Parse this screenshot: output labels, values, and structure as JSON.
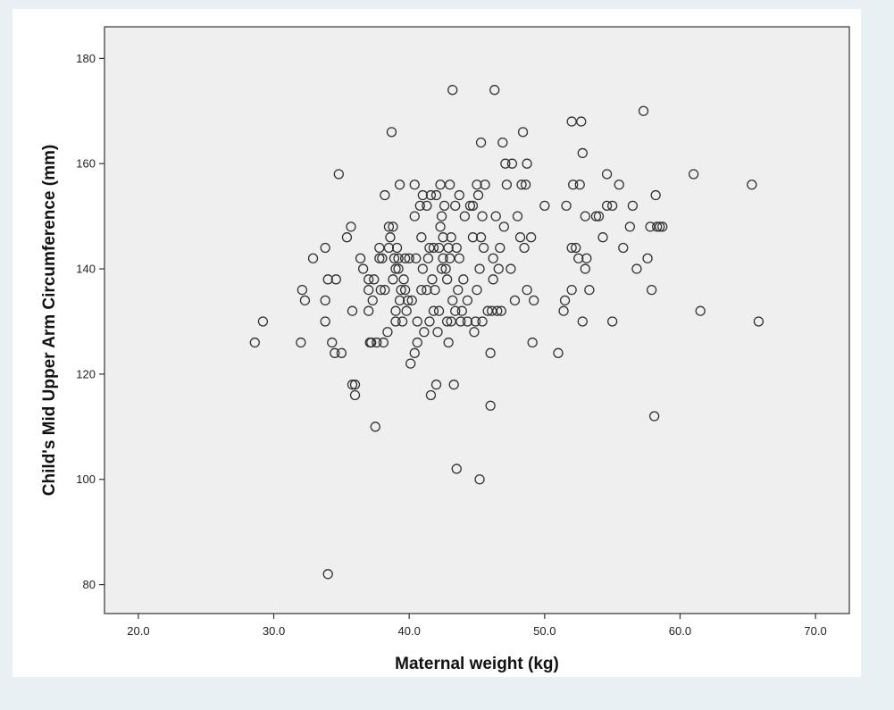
{
  "chart_data": {
    "type": "scatter",
    "title": "",
    "xlabel": "Maternal weight (kg)",
    "ylabel": "Child's Mid Upper Arm Circumference (mm)",
    "xlim": [
      17.5,
      72.5
    ],
    "ylim": [
      74.5,
      186
    ],
    "xticks": [
      20,
      30,
      40,
      50,
      60,
      70
    ],
    "xtick_labels": [
      "20.0",
      "30.0",
      "40.0",
      "50.0",
      "60.0",
      "70.0"
    ],
    "yticks": [
      80,
      100,
      120,
      140,
      160,
      180
    ],
    "ytick_labels": [
      "80",
      "100",
      "120",
      "140",
      "160",
      "180"
    ],
    "grid": false,
    "marker": "open-circle",
    "marker_color": "#333333",
    "plot_background": "#efefef",
    "points": [
      [
        28.6,
        126
      ],
      [
        29.2,
        130
      ],
      [
        32.0,
        126
      ],
      [
        32.1,
        136
      ],
      [
        32.3,
        134
      ],
      [
        32.9,
        142
      ],
      [
        33.8,
        144
      ],
      [
        33.8,
        134
      ],
      [
        33.8,
        130
      ],
      [
        34.0,
        138
      ],
      [
        34.0,
        82
      ],
      [
        34.3,
        126
      ],
      [
        34.5,
        124
      ],
      [
        34.6,
        138
      ],
      [
        34.8,
        158
      ],
      [
        35.0,
        124
      ],
      [
        35.4,
        146
      ],
      [
        35.7,
        148
      ],
      [
        35.8,
        132
      ],
      [
        35.8,
        118
      ],
      [
        36.0,
        118
      ],
      [
        36.0,
        116
      ],
      [
        36.4,
        142
      ],
      [
        36.6,
        140
      ],
      [
        37.0,
        138
      ],
      [
        37.0,
        136
      ],
      [
        37.0,
        132
      ],
      [
        37.1,
        126
      ],
      [
        37.2,
        126
      ],
      [
        37.3,
        134
      ],
      [
        37.4,
        138
      ],
      [
        37.5,
        110
      ],
      [
        37.6,
        126
      ],
      [
        37.8,
        144
      ],
      [
        37.8,
        142
      ],
      [
        37.9,
        136
      ],
      [
        38.0,
        142
      ],
      [
        38.1,
        126
      ],
      [
        38.2,
        136
      ],
      [
        38.2,
        154
      ],
      [
        38.4,
        128
      ],
      [
        38.5,
        144
      ],
      [
        38.5,
        148
      ],
      [
        38.6,
        146
      ],
      [
        38.7,
        166
      ],
      [
        38.8,
        148
      ],
      [
        38.8,
        138
      ],
      [
        38.9,
        142
      ],
      [
        39.0,
        132
      ],
      [
        39.0,
        140
      ],
      [
        39.0,
        130
      ],
      [
        39.1,
        144
      ],
      [
        39.2,
        142
      ],
      [
        39.2,
        140
      ],
      [
        39.3,
        156
      ],
      [
        39.3,
        134
      ],
      [
        39.4,
        136
      ],
      [
        39.5,
        130
      ],
      [
        39.6,
        138
      ],
      [
        39.7,
        142
      ],
      [
        39.7,
        136
      ],
      [
        39.8,
        132
      ],
      [
        39.9,
        134
      ],
      [
        40.0,
        142
      ],
      [
        40.1,
        122
      ],
      [
        40.2,
        134
      ],
      [
        40.4,
        150
      ],
      [
        40.4,
        156
      ],
      [
        40.4,
        124
      ],
      [
        40.5,
        142
      ],
      [
        40.6,
        126
      ],
      [
        40.6,
        130
      ],
      [
        40.8,
        152
      ],
      [
        40.9,
        136
      ],
      [
        40.9,
        146
      ],
      [
        41.0,
        154
      ],
      [
        41.0,
        140
      ],
      [
        41.1,
        128
      ],
      [
        41.3,
        152
      ],
      [
        41.3,
        136
      ],
      [
        41.4,
        142
      ],
      [
        41.5,
        144
      ],
      [
        41.5,
        130
      ],
      [
        41.6,
        154
      ],
      [
        41.6,
        116
      ],
      [
        41.7,
        138
      ],
      [
        41.8,
        132
      ],
      [
        41.8,
        144
      ],
      [
        41.9,
        136
      ],
      [
        42.0,
        154
      ],
      [
        42.0,
        118
      ],
      [
        42.1,
        128
      ],
      [
        42.2,
        132
      ],
      [
        42.2,
        144
      ],
      [
        42.3,
        148
      ],
      [
        42.3,
        156
      ],
      [
        42.4,
        150
      ],
      [
        42.4,
        140
      ],
      [
        42.5,
        146
      ],
      [
        42.5,
        142
      ],
      [
        42.6,
        152
      ],
      [
        42.7,
        140
      ],
      [
        42.8,
        138
      ],
      [
        42.8,
        130
      ],
      [
        42.9,
        126
      ],
      [
        42.9,
        144
      ],
      [
        43.0,
        156
      ],
      [
        43.0,
        142
      ],
      [
        43.1,
        130
      ],
      [
        43.1,
        146
      ],
      [
        43.2,
        174
      ],
      [
        43.2,
        134
      ],
      [
        43.3,
        118
      ],
      [
        43.4,
        152
      ],
      [
        43.4,
        132
      ],
      [
        43.5,
        144
      ],
      [
        43.5,
        102
      ],
      [
        43.6,
        136
      ],
      [
        43.7,
        142
      ],
      [
        43.7,
        154
      ],
      [
        43.8,
        130
      ],
      [
        43.9,
        132
      ],
      [
        44.0,
        138
      ],
      [
        44.1,
        150
      ],
      [
        44.3,
        130
      ],
      [
        44.3,
        134
      ],
      [
        44.5,
        152
      ],
      [
        44.7,
        152
      ],
      [
        44.7,
        146
      ],
      [
        44.8,
        128
      ],
      [
        44.9,
        130
      ],
      [
        45.0,
        136
      ],
      [
        45.0,
        156
      ],
      [
        45.1,
        154
      ],
      [
        45.2,
        100
      ],
      [
        45.2,
        140
      ],
      [
        45.3,
        164
      ],
      [
        45.3,
        146
      ],
      [
        45.4,
        130
      ],
      [
        45.4,
        150
      ],
      [
        45.5,
        144
      ],
      [
        45.6,
        156
      ],
      [
        45.8,
        132
      ],
      [
        46.0,
        114
      ],
      [
        46.0,
        124
      ],
      [
        46.1,
        132
      ],
      [
        46.2,
        138
      ],
      [
        46.2,
        142
      ],
      [
        46.3,
        174
      ],
      [
        46.4,
        150
      ],
      [
        46.5,
        132
      ],
      [
        46.6,
        140
      ],
      [
        46.7,
        144
      ],
      [
        46.8,
        132
      ],
      [
        46.9,
        164
      ],
      [
        47.0,
        148
      ],
      [
        47.1,
        160
      ],
      [
        47.2,
        156
      ],
      [
        47.5,
        140
      ],
      [
        47.6,
        160
      ],
      [
        47.8,
        134
      ],
      [
        48.0,
        150
      ],
      [
        48.2,
        146
      ],
      [
        48.3,
        156
      ],
      [
        48.4,
        166
      ],
      [
        48.5,
        144
      ],
      [
        48.6,
        156
      ],
      [
        48.7,
        136
      ],
      [
        48.7,
        160
      ],
      [
        49.0,
        146
      ],
      [
        49.1,
        126
      ],
      [
        49.2,
        134
      ],
      [
        50.0,
        152
      ],
      [
        51.0,
        124
      ],
      [
        51.4,
        132
      ],
      [
        51.5,
        134
      ],
      [
        51.6,
        152
      ],
      [
        52.0,
        168
      ],
      [
        52.0,
        144
      ],
      [
        52.0,
        136
      ],
      [
        52.1,
        156
      ],
      [
        52.3,
        144
      ],
      [
        52.5,
        142
      ],
      [
        52.6,
        156
      ],
      [
        52.7,
        168
      ],
      [
        52.8,
        162
      ],
      [
        52.8,
        130
      ],
      [
        53.0,
        150
      ],
      [
        53.0,
        140
      ],
      [
        53.1,
        142
      ],
      [
        53.3,
        136
      ],
      [
        53.8,
        150
      ],
      [
        54.0,
        150
      ],
      [
        54.3,
        146
      ],
      [
        54.6,
        158
      ],
      [
        54.6,
        152
      ],
      [
        55.0,
        130
      ],
      [
        55.0,
        152
      ],
      [
        55.5,
        156
      ],
      [
        55.8,
        144
      ],
      [
        56.3,
        148
      ],
      [
        56.5,
        152
      ],
      [
        56.8,
        140
      ],
      [
        57.3,
        170
      ],
      [
        57.6,
        142
      ],
      [
        57.8,
        148
      ],
      [
        57.9,
        136
      ],
      [
        58.1,
        112
      ],
      [
        58.2,
        154
      ],
      [
        58.3,
        148
      ],
      [
        58.5,
        148
      ],
      [
        58.7,
        148
      ],
      [
        61.0,
        158
      ],
      [
        61.5,
        132
      ],
      [
        65.3,
        156
      ],
      [
        65.8,
        130
      ]
    ]
  }
}
